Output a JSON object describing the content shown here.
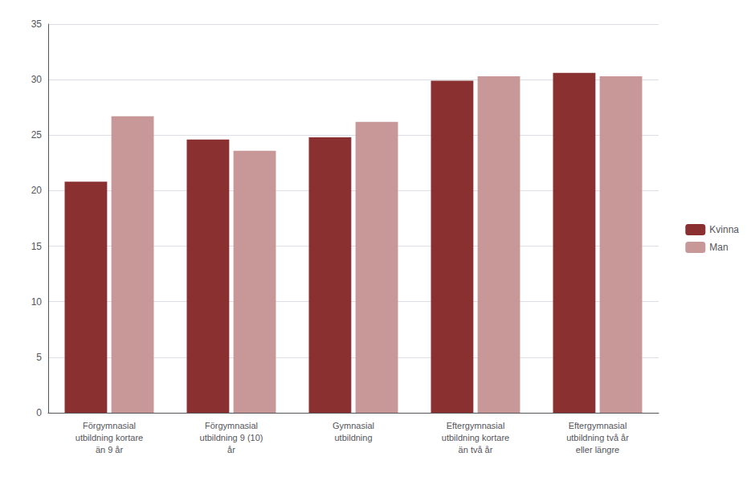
{
  "chart_data": {
    "type": "bar",
    "categories": [
      "Förgymnasial\nutbildning kortare\nän 9 år",
      "Förgymnasial\nutbildning 9 (10)\når",
      "Gymnasial\nutbildning",
      "Eftergymnasial\nutbildning kortare\nän två år",
      "Eftergymnasial\nutbildning två år\neller längre"
    ],
    "series": [
      {
        "name": "Kvinna",
        "color": "#8B3030",
        "values": [
          20.8,
          24.6,
          24.8,
          29.9,
          30.6
        ]
      },
      {
        "name": "Man",
        "color": "#C89898",
        "values": [
          26.7,
          23.6,
          26.2,
          30.3,
          30.3
        ]
      }
    ],
    "ylim": [
      0,
      35
    ],
    "yticks": [
      0,
      5,
      10,
      15,
      20,
      25,
      30,
      35
    ],
    "grid": true,
    "legend": "right"
  }
}
